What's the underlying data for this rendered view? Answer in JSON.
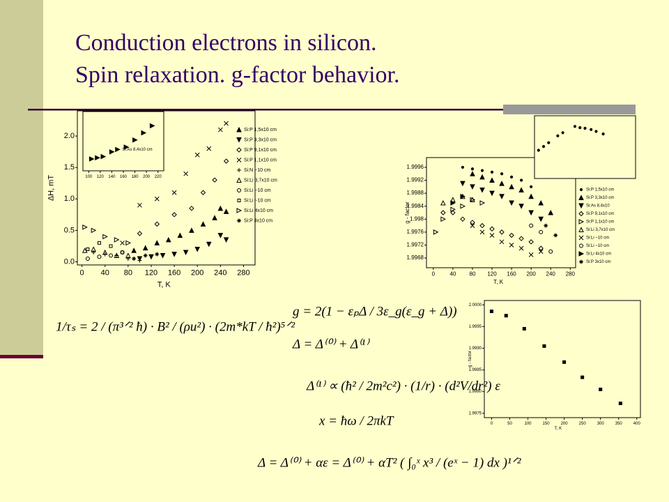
{
  "header": {
    "title": [
      "Conduction electrons in silicon.",
      "Spin relaxation. g-factor behavior."
    ]
  },
  "chart_data": [
    {
      "type": "scatter",
      "x_label": "T, K",
      "y_label": "ΔH, mT",
      "xlim": [
        -8,
        300
      ],
      "ylim": [
        -0.05,
        2.4
      ],
      "xticks": [
        0,
        40,
        80,
        120,
        160,
        200,
        240,
        280
      ],
      "yticks": [
        {
          "value": 0,
          "label": "0.0"
        },
        {
          "value": 0.5,
          "label": "0.5"
        },
        {
          "value": 1,
          "label": "1.0"
        },
        {
          "value": 1.5,
          "label": "1.5"
        },
        {
          "value": 2,
          "label": "2.0"
        }
      ],
      "legend": "right",
      "color": "#000000",
      "series": [
        {
          "name": "Si:P 1,5x10 cm",
          "marker": "tri-up-f",
          "x": [
            90,
            110,
            130,
            150,
            170,
            190,
            210,
            230,
            240,
            250
          ],
          "values": [
            0.18,
            0.22,
            0.3,
            0.35,
            0.42,
            0.5,
            0.6,
            0.7,
            0.85,
            0.8
          ]
        },
        {
          "name": "Si:P 3,3x10 cm",
          "marker": "tri-down-f",
          "x": [
            100,
            120,
            140,
            160,
            180,
            200,
            220,
            240,
            250
          ],
          "values": [
            0.05,
            0.08,
            0.1,
            0.12,
            0.15,
            0.2,
            0.28,
            0.42,
            0.35
          ]
        },
        {
          "name": "Si:P 9,1x10 cm",
          "marker": "diamond",
          "x": [
            100,
            130,
            160,
            190,
            210,
            230,
            250
          ],
          "values": [
            0.45,
            0.6,
            0.75,
            0.85,
            1.1,
            1.3,
            1.6
          ]
        },
        {
          "name": "Si:P 1,1x10 cm",
          "marker": "x",
          "x": [
            70,
            100,
            130,
            160,
            180,
            200,
            220,
            240,
            250
          ],
          "values": [
            0.3,
            0.9,
            1.0,
            1.1,
            1.4,
            1.7,
            1.8,
            2.1,
            2.2
          ]
        },
        {
          "name": "Si:N ~10 cm",
          "marker": "plus",
          "x": [
            20,
            40,
            60,
            80,
            100
          ],
          "values": [
            0.15,
            0.12,
            0.1,
            0.05,
            0.02
          ]
        },
        {
          "name": "Si:Li 3,7x10 cm",
          "marker": "tri-up",
          "x": [
            5,
            20,
            40,
            60,
            80
          ],
          "values": [
            0.18,
            0.2,
            0.15,
            0.1,
            0.1
          ]
        },
        {
          "name": "Si:Li ~10 cm",
          "marker": "circle",
          "x": [
            10,
            30,
            50,
            70
          ],
          "values": [
            0.05,
            0.08,
            0.1,
            0.15
          ]
        },
        {
          "name": "Si:Li ~10 cm",
          "marker": "square",
          "x": [
            10,
            30,
            50,
            70
          ],
          "values": [
            0.2,
            0.3,
            0.25,
            0.15
          ]
        },
        {
          "name": "Si:Li 4x10 cm",
          "marker": "tri-right",
          "x": [
            5,
            20,
            40,
            60,
            80
          ],
          "values": [
            0.55,
            0.5,
            0.4,
            0.35,
            0.3
          ]
        },
        {
          "name": "Si:P 3x10 cm",
          "marker": "star",
          "x": [
            90,
            110,
            130
          ],
          "values": [
            0.05,
            0.1,
            0.12
          ]
        }
      ]
    },
    {
      "type": "scatter",
      "xlim": [
        90,
        230
      ],
      "ylim": [
        0,
        2.5
      ],
      "xticks": [
        100,
        120,
        140,
        160,
        180,
        200,
        220
      ],
      "annotation": "Si:As 8,4x10 cm",
      "color": "#000000",
      "series": [
        {
          "marker": "tri-right-f",
          "x": [
            105,
            115,
            125,
            140,
            150,
            165,
            180,
            195,
            210
          ],
          "values": [
            0.5,
            0.55,
            0.6,
            0.8,
            0.9,
            1.0,
            1.3,
            1.6,
            1.9
          ]
        }
      ]
    },
    {
      "type": "scatter",
      "x_label": "T, K",
      "y_label": "g - factor",
      "xlim": [
        -14,
        291
      ],
      "ylim": [
        1.9965,
        1.9999
      ],
      "xticks": [
        0,
        40,
        80,
        120,
        160,
        200,
        240,
        280
      ],
      "yticks": [
        1.9968,
        1.9972,
        1.9976,
        1.998,
        1.9984,
        1.9988,
        1.9992,
        1.9996
      ],
      "legend": "right",
      "color": "#000000",
      "series": [
        {
          "name": "Si:P 1,5x10 cm",
          "marker": "dot",
          "x": [
            60,
            80,
            100,
            120,
            140,
            160,
            180,
            200
          ],
          "values": [
            1.9996,
            1.99955,
            1.9995,
            1.99945,
            1.9994,
            1.9993,
            1.9992,
            1.999
          ]
        },
        {
          "name": "Si:P 3,3x10 cm",
          "marker": "tri-up-f",
          "x": [
            80,
            100,
            120,
            140,
            160,
            180,
            200,
            220,
            240
          ],
          "values": [
            1.9994,
            1.9993,
            1.9992,
            1.9991,
            1.999,
            1.9989,
            1.9987,
            1.9985,
            1.9982
          ]
        },
        {
          "name": "Si:As 8,4x10",
          "marker": "tri-down-f",
          "x": [
            60,
            80,
            100,
            120,
            140,
            160,
            180,
            200,
            220
          ],
          "values": [
            1.9991,
            1.999,
            1.9989,
            1.9988,
            1.9987,
            1.9985,
            1.9984,
            1.9982,
            1.998
          ]
        },
        {
          "name": "Si:P 9,1x10 cm",
          "marker": "diamond",
          "x": [
            20,
            40,
            60,
            80,
            100,
            120,
            140,
            160,
            180,
            200,
            220
          ],
          "values": [
            1.9982,
            1.9982,
            1.998,
            1.9979,
            1.9978,
            1.9977,
            1.9976,
            1.9975,
            1.9974,
            1.9973,
            1.9971
          ]
        },
        {
          "name": "Si:P 1,1x10 cm",
          "marker": "tri-right",
          "x": [
            5,
            20,
            40,
            60,
            80,
            100
          ],
          "values": [
            1.9976,
            1.998,
            1.9983,
            1.9984,
            1.9986,
            1.9985
          ]
        },
        {
          "name": "Si:Li 3,7x10 cm",
          "marker": "tri-up",
          "x": [
            20,
            40,
            60,
            80
          ],
          "values": [
            1.9985,
            1.9986,
            1.9987,
            1.9986
          ]
        },
        {
          "name": "Si:Li ~10 cm",
          "marker": "x",
          "x": [
            80,
            100,
            120,
            140,
            160,
            180,
            200,
            220
          ],
          "values": [
            1.9978,
            1.9976,
            1.9975,
            1.9973,
            1.9972,
            1.9971,
            1.9969,
            1.997
          ]
        },
        {
          "name": "Si:Li ~10 cm",
          "marker": "circle",
          "x": [
            200,
            220,
            240
          ],
          "values": [
            1.9978,
            1.9976,
            1.997
          ]
        },
        {
          "name": "Si:Li 4x10 cm",
          "marker": "tri-right-f",
          "x": [
            40,
            60
          ],
          "values": [
            1.9985,
            1.9987
          ]
        },
        {
          "name": "Si:P 3x10 cm",
          "marker": "star",
          "x": [
            230,
            250
          ],
          "values": [
            1.9978,
            1.9975
          ]
        }
      ]
    },
    {
      "type": "scatter",
      "xlim": [
        0,
        10
      ],
      "ylim": [
        0,
        10
      ],
      "color": "#000000",
      "series": [
        {
          "marker": "dot",
          "x": [
            0.4,
            0.9,
            1.4,
            2.3,
            2.8,
            4,
            4.5,
            5,
            5.6,
            6.1,
            6.8
          ],
          "values": [
            4.5,
            5.1,
            5.7,
            6.8,
            7.3,
            8.3,
            8.1,
            8,
            7.8,
            7.5,
            7.1
          ]
        }
      ]
    },
    {
      "type": "scatter",
      "x_label": "T, K",
      "y_label": "g - factor",
      "xlim": [
        -20,
        410
      ],
      "ylim": [
        1.9974,
        2.0001
      ],
      "xticks": [
        0,
        50,
        100,
        150,
        200,
        250,
        300,
        350,
        400
      ],
      "yticks": [
        {
          "value": 1.9975,
          "label": "1.9975"
        },
        {
          "value": 1.998,
          "label": "1.9980"
        },
        {
          "value": 1.9985,
          "label": "1.9985"
        },
        {
          "value": 1.999,
          "label": "1.9990"
        },
        {
          "value": 1.9995,
          "label": "1.9995"
        },
        {
          "value": 2,
          "label": "2.0000"
        }
      ],
      "color": "#000000",
      "series": [
        {
          "marker": "square-f",
          "x": [
            0,
            40,
            90,
            145,
            200,
            250,
            300,
            355
          ],
          "values": [
            1.99985,
            1.99975,
            1.99945,
            1.99905,
            1.99868,
            1.99833,
            1.99805,
            1.99773
          ]
        }
      ]
    }
  ],
  "equations": [
    "1/τₛ = 2 / (π³ᐟ² ħ) · B² / (ρu²) · (2m*kT / ħ²)⁵ᐟ²",
    "g = 2(1 − εₚΔ / 3ε_g(ε_g + Δ))",
    "Δ = Δ⁽⁰⁾ + Δ⁽¹⁾",
    "Δ⁽¹⁾ ∝ (ħ² / 2m²c²) · (1/r) · (d²V/dr²) ε",
    "x = ħω / 2πkT",
    "Δ = Δ⁽⁰⁾ + αε = Δ⁽⁰⁾ + αT² ( ∫₀ˣ x³ / (eˣ − 1) dx )¹ᐟ²"
  ]
}
